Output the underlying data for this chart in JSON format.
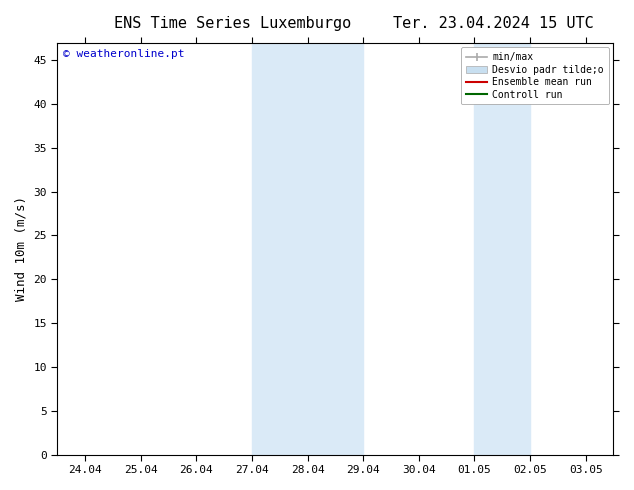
{
  "title_left": "ENS Time Series Luxemburgo",
  "title_right": "Ter. 23.04.2024 15 UTC",
  "ylabel": "Wind 10m (m/s)",
  "watermark": "© weatheronline.pt",
  "watermark_color": "#0000cc",
  "background_color": "#ffffff",
  "plot_bg_color": "#ffffff",
  "shaded_color": "#daeaf7",
  "xlim": [
    -0.5,
    9.5
  ],
  "ylim": [
    0,
    47
  ],
  "yticks": [
    0,
    5,
    10,
    15,
    20,
    25,
    30,
    35,
    40,
    45
  ],
  "xtick_labels": [
    "24.04",
    "25.04",
    "26.04",
    "27.04",
    "28.04",
    "29.04",
    "30.04",
    "01.05",
    "02.05",
    "03.05"
  ],
  "shaded_band1": [
    3,
    5
  ],
  "shaded_band2": [
    7,
    8
  ],
  "legend_labels": [
    "min/max",
    "Desvio padr tilde;o",
    "Ensemble mean run",
    "Controll run"
  ],
  "legend_colors": [
    "#aaaaaa",
    "#c8dff0",
    "#cc0000",
    "#006600"
  ],
  "tick_fontsize": 8,
  "label_fontsize": 9,
  "title_fontsize": 11,
  "watermark_fontsize": 8
}
